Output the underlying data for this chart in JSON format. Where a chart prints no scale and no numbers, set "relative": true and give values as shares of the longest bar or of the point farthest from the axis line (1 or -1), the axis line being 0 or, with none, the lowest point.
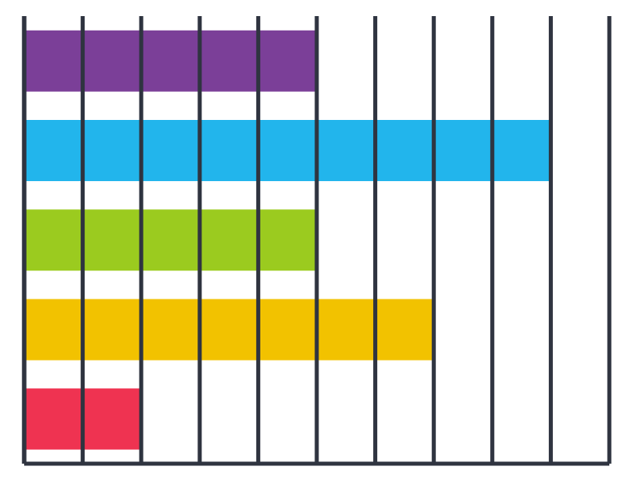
{
  "chart_data": {
    "type": "bar",
    "orientation": "horizontal",
    "relative": true,
    "grid": "x",
    "tick_labels": false,
    "categories": [
      null,
      null,
      null,
      null,
      null
    ],
    "values": [
      0.556,
      1,
      0.556,
      0.778,
      0.222
    ],
    "colors": [
      "#7b3f98",
      "#22b5ec",
      "#9bcb1f",
      "#f2c200",
      "#ef3351"
    ]
  }
}
